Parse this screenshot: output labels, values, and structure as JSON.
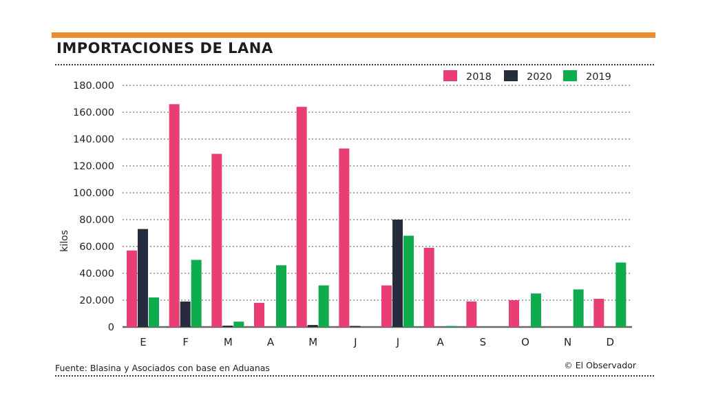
{
  "header": {
    "title": "IMPORTACIONES DE LANA"
  },
  "footer": {
    "source": "Fuente: Blasina y Asociados con base en Aduanas",
    "credit": "© El Observador"
  },
  "colors": {
    "accent": "#ec8a2e",
    "s2018": "#e83e74",
    "s2020": "#262b3d",
    "s2019": "#0fac4e"
  },
  "chart_data": {
    "type": "bar",
    "title": "IMPORTACIONES DE LANA",
    "xlabel": "",
    "ylabel": "kilos",
    "ylim": [
      0,
      180000
    ],
    "yticks": [
      0,
      20000,
      40000,
      60000,
      80000,
      100000,
      120000,
      140000,
      160000,
      180000
    ],
    "ytick_labels": [
      "0",
      "20.000",
      "40.000",
      "60.000",
      "80.000",
      "100.000",
      "120.000",
      "140.000",
      "160.000",
      "180.000"
    ],
    "categories": [
      "E",
      "F",
      "M",
      "A",
      "M",
      "J",
      "J",
      "A",
      "S",
      "O",
      "N",
      "D"
    ],
    "legend_position": "top-right",
    "grid": true,
    "series": [
      {
        "name": "2018",
        "color": "#e83e74",
        "values": [
          57000,
          166000,
          129000,
          18000,
          164000,
          133000,
          31000,
          59000,
          19000,
          20000,
          0,
          21000
        ]
      },
      {
        "name": "2020",
        "color": "#262b3d",
        "values": [
          73000,
          19000,
          1000,
          0,
          1500,
          800,
          80000,
          0,
          0,
          0,
          0,
          0
        ]
      },
      {
        "name": "2019",
        "color": "#0fac4e",
        "values": [
          22000,
          50000,
          4000,
          46000,
          31000,
          0,
          68000,
          800,
          0,
          25000,
          28000,
          48000
        ]
      }
    ]
  }
}
